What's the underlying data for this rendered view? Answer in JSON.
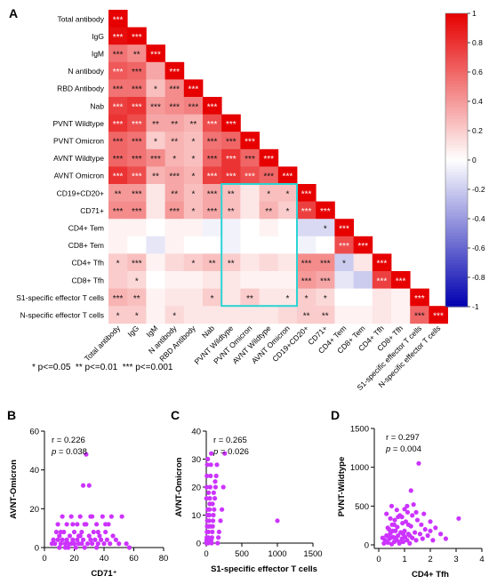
{
  "panel_labels": [
    "A",
    "B",
    "C",
    "D"
  ],
  "footnote": "* p<=0.05  ** p<=0.01  *** p<=0.001",
  "chart_data": [
    {
      "type": "heatmap",
      "panel": "A",
      "variables": [
        "Total antibody",
        "IgG",
        "IgM",
        "N antibody",
        "RBD Antibody",
        "Nab",
        "PVNT Wildtype",
        "PVNT Omicron",
        "AVNT Wildtype",
        "AVNT Omicron",
        "CD19+CD20+",
        "CD71+",
        "CD4+ Tem",
        "CD8+ Tem",
        "CD4+ Tfh",
        "CD8+ Tfh",
        "S1-specific effector T cells",
        "N-specific effector T cells"
      ],
      "x_labels": [
        "Total antibody",
        "IgG",
        "IgM",
        "N antibody",
        "RBD Antibody",
        "Nab",
        "PVNT Wildtype",
        "PVNT Omicron",
        "AVNT Wildtype",
        "AVNT Omicron",
        "CD19+CD20+",
        "CD71+",
        "CD4+ Tem",
        "CD8+ Tem",
        "CD4+ Tfh",
        "CD8+ Tfh",
        "S1-specific effector T cells",
        "N-specific effector T cells"
      ],
      "colorbar": {
        "min": -1,
        "max": 1,
        "ticks": [
          "1",
          "0.8",
          "0.6",
          "0.4",
          "0.2",
          "0",
          "-0.2",
          "-0.4",
          "-0.6",
          "-0.8",
          "-1"
        ]
      },
      "colors": {
        "positive": "#e60000",
        "neutral": "#ffffff",
        "negative": "#0000b0",
        "highlight_box": "#2ad4d4"
      },
      "highlight": {
        "rows": [
          10,
          16
        ],
        "cols": [
          6,
          9
        ]
      },
      "r": [
        [
          1
        ],
        [
          0.95,
          1
        ],
        [
          0.55,
          0.45,
          1
        ],
        [
          0.65,
          0.6,
          0.35,
          1
        ],
        [
          0.55,
          0.55,
          0.25,
          0.45,
          1
        ],
        [
          0.75,
          0.8,
          0.4,
          0.45,
          0.5,
          1
        ],
        [
          0.8,
          0.7,
          0.35,
          0.35,
          0.3,
          0.7,
          1
        ],
        [
          0.6,
          0.55,
          0.2,
          0.3,
          0.25,
          0.55,
          0.6,
          1
        ],
        [
          0.6,
          0.55,
          0.45,
          0.3,
          0.25,
          0.6,
          0.8,
          0.6,
          1
        ],
        [
          0.8,
          0.7,
          0.3,
          0.35,
          0.3,
          0.75,
          0.8,
          0.7,
          0.6,
          1
        ],
        [
          0.4,
          0.4,
          0.1,
          0.35,
          0.25,
          0.35,
          0.25,
          0.1,
          0.25,
          0.25,
          1
        ],
        [
          0.45,
          0.45,
          0.1,
          0.4,
          0.25,
          0.35,
          0.25,
          0.1,
          0.3,
          0.2,
          0.75,
          1
        ],
        [
          0.05,
          0.05,
          0.0,
          0.05,
          0.05,
          -0.05,
          -0.05,
          0.0,
          0.05,
          0.0,
          -0.15,
          -0.15,
          1
        ],
        [
          0.05,
          0.0,
          -0.1,
          0.05,
          0.0,
          0.0,
          -0.05,
          0.0,
          0.0,
          0.0,
          -0.05,
          0.0,
          0.7,
          1
        ],
        [
          0.2,
          0.25,
          0.05,
          0.15,
          0.2,
          0.25,
          0.2,
          0.1,
          0.15,
          0.1,
          0.45,
          0.45,
          -0.2,
          0.1,
          1
        ],
        [
          0.2,
          0.15,
          0.0,
          0.05,
          0.05,
          0.1,
          0.1,
          0.05,
          0.05,
          0.05,
          0.4,
          0.35,
          -0.1,
          -0.2,
          0.75,
          1
        ],
        [
          0.3,
          0.25,
          0.05,
          0.1,
          0.1,
          0.2,
          0.1,
          0.2,
          0.1,
          0.1,
          0.2,
          0.15,
          0.0,
          0.0,
          0.1,
          0.05,
          1
        ],
        [
          0.2,
          0.2,
          0.05,
          0.15,
          0.1,
          0.1,
          0.1,
          0.1,
          0.1,
          0.15,
          0.2,
          0.2,
          0.05,
          0.05,
          0.1,
          0.05,
          0.6,
          1
        ]
      ],
      "significance": [
        [
          "***"
        ],
        [
          "***",
          "***"
        ],
        [
          "***",
          "**",
          "***"
        ],
        [
          "***",
          "***",
          "",
          "***"
        ],
        [
          "***",
          "***",
          "*",
          "***",
          "***"
        ],
        [
          "***",
          "***",
          "***",
          "***",
          "***",
          "***"
        ],
        [
          "***",
          "***",
          "**",
          "**",
          "**",
          "***",
          "***"
        ],
        [
          "***",
          "***",
          "*",
          "**",
          "*",
          "***",
          "***",
          "***"
        ],
        [
          "***",
          "***",
          "***",
          "*",
          "*",
          "***",
          "***",
          "***",
          "***"
        ],
        [
          "***",
          "***",
          "**",
          "***",
          "*",
          "***",
          "***",
          "***",
          "***",
          "***"
        ],
        [
          "**",
          "***",
          "",
          "**",
          "*",
          "***",
          "**",
          "",
          "*",
          "*",
          "***"
        ],
        [
          "***",
          "***",
          "",
          "***",
          "*",
          "***",
          "**",
          "",
          "**",
          "*",
          "***",
          "***"
        ],
        [
          "",
          "",
          "",
          "",
          "",
          "",
          "",
          "",
          "",
          "",
          "",
          "*",
          "***"
        ],
        [
          "",
          "",
          "",
          "",
          "",
          "",
          "",
          "",
          "",
          "",
          "",
          "",
          "***",
          "***"
        ],
        [
          "*",
          "***",
          "",
          "",
          "*",
          "**",
          "**",
          "",
          "",
          "",
          "***",
          "***",
          "*",
          "",
          "***"
        ],
        [
          "",
          "*",
          "",
          "",
          "",
          "",
          "",
          "",
          "",
          "",
          "***",
          "***",
          "",
          "",
          "***",
          "***"
        ],
        [
          "***",
          "**",
          "",
          "",
          "",
          "*",
          "",
          "**",
          "",
          "*",
          "*",
          "*",
          "",
          "",
          "",
          "",
          "***"
        ],
        [
          "*",
          "*",
          "",
          "*",
          "",
          "",
          "",
          "",
          "",
          "",
          "**",
          "**",
          "",
          "",
          "",
          "",
          "***",
          "***"
        ]
      ]
    },
    {
      "type": "scatter",
      "panel": "B",
      "xlabel": "CD71⁺",
      "ylabel": "AVNT-Omicron",
      "xlim": [
        0,
        80
      ],
      "ylim": [
        0,
        60
      ],
      "xticks": [
        "0",
        "20",
        "40",
        "60",
        "80"
      ],
      "yticks": [
        "0",
        "20",
        "40",
        "60"
      ],
      "stats": {
        "r": "r = 0.226",
        "p_prefix": "p",
        "p_value": " = 0.038"
      },
      "color": "#cc33ff",
      "points": [
        [
          5,
          2
        ],
        [
          6,
          4
        ],
        [
          7,
          2
        ],
        [
          8,
          8
        ],
        [
          9,
          4
        ],
        [
          10,
          0
        ],
        [
          10,
          6
        ],
        [
          11,
          2
        ],
        [
          12,
          4
        ],
        [
          12,
          16
        ],
        [
          13,
          8
        ],
        [
          14,
          2
        ],
        [
          15,
          4
        ],
        [
          15,
          12
        ],
        [
          16,
          0
        ],
        [
          16,
          2
        ],
        [
          17,
          6
        ],
        [
          18,
          16
        ],
        [
          18,
          2
        ],
        [
          19,
          4
        ],
        [
          20,
          8
        ],
        [
          20,
          2
        ],
        [
          21,
          0
        ],
        [
          22,
          4
        ],
        [
          22,
          12
        ],
        [
          23,
          2
        ],
        [
          24,
          6
        ],
        [
          24,
          16
        ],
        [
          25,
          8
        ],
        [
          25,
          2
        ],
        [
          26,
          32
        ],
        [
          26,
          4
        ],
        [
          27,
          0
        ],
        [
          28,
          48
        ],
        [
          28,
          12
        ],
        [
          29,
          2
        ],
        [
          30,
          32
        ],
        [
          30,
          6
        ],
        [
          31,
          4
        ],
        [
          32,
          16
        ],
        [
          32,
          2
        ],
        [
          33,
          8
        ],
        [
          34,
          4
        ],
        [
          35,
          0
        ],
        [
          35,
          12
        ],
        [
          36,
          2
        ],
        [
          37,
          6
        ],
        [
          38,
          4
        ],
        [
          39,
          16
        ],
        [
          40,
          2
        ],
        [
          41,
          8
        ],
        [
          42,
          4
        ],
        [
          43,
          12
        ],
        [
          44,
          2
        ],
        [
          45,
          16
        ],
        [
          46,
          6
        ],
        [
          48,
          4
        ],
        [
          50,
          2
        ],
        [
          52,
          16
        ],
        [
          55,
          2
        ],
        [
          57,
          0
        ],
        [
          9,
          12
        ],
        [
          11,
          8
        ],
        [
          14,
          0
        ],
        [
          19,
          12
        ],
        [
          23,
          6
        ],
        [
          27,
          12
        ],
        [
          31,
          16
        ],
        [
          36,
          8
        ],
        [
          41,
          12
        ]
      ]
    },
    {
      "type": "scatter",
      "panel": "C",
      "xlabel": "S1-specific effector T cells",
      "ylabel": "AVNT-Omicron",
      "xlim": [
        0,
        1500
      ],
      "ylim": [
        0,
        40
      ],
      "xticks": [
        "0",
        "500",
        "1000",
        "1500"
      ],
      "yticks": [
        "0",
        "10",
        "20",
        "30",
        "40"
      ],
      "stats": {
        "r": "r = 0.265",
        "p_prefix": "p",
        "p_value": " = 0.026"
      },
      "color": "#cc33ff",
      "points": [
        [
          2,
          0
        ],
        [
          5,
          1
        ],
        [
          8,
          2
        ],
        [
          10,
          4
        ],
        [
          12,
          6
        ],
        [
          15,
          8
        ],
        [
          18,
          10
        ],
        [
          20,
          12
        ],
        [
          25,
          0
        ],
        [
          28,
          2
        ],
        [
          30,
          4
        ],
        [
          35,
          6
        ],
        [
          40,
          8
        ],
        [
          42,
          10
        ],
        [
          45,
          12
        ],
        [
          50,
          16
        ],
        [
          55,
          20
        ],
        [
          60,
          24
        ],
        [
          65,
          28
        ],
        [
          70,
          32
        ],
        [
          75,
          0
        ],
        [
          80,
          2
        ],
        [
          85,
          4
        ],
        [
          90,
          6
        ],
        [
          95,
          8
        ],
        [
          100,
          10
        ],
        [
          110,
          12
        ],
        [
          120,
          16
        ],
        [
          130,
          20
        ],
        [
          140,
          24
        ],
        [
          150,
          28
        ],
        [
          160,
          0
        ],
        [
          170,
          2
        ],
        [
          180,
          4
        ],
        [
          200,
          8
        ],
        [
          220,
          12
        ],
        [
          240,
          20
        ],
        [
          260,
          32
        ],
        [
          1000,
          8
        ],
        [
          3,
          16
        ],
        [
          6,
          20
        ],
        [
          9,
          24
        ],
        [
          14,
          28
        ],
        [
          22,
          30
        ],
        [
          33,
          18
        ],
        [
          48,
          14
        ],
        [
          58,
          6
        ],
        [
          68,
          1
        ],
        [
          88,
          14
        ],
        [
          105,
          18
        ],
        [
          125,
          22
        ]
      ]
    },
    {
      "type": "scatter",
      "panel": "D",
      "xlabel": "CD4+ Tfh",
      "ylabel": "PVNT-Wildtype",
      "xlim": [
        0,
        4
      ],
      "ylim": [
        0,
        1500
      ],
      "xticks": [
        "0",
        "1",
        "2",
        "3",
        "4"
      ],
      "yticks": [
        "0",
        "500",
        "1000",
        "1500"
      ],
      "stats": {
        "r": "r = 0.297",
        "p_prefix": "p",
        "p_value": " = 0.004"
      },
      "color": "#cc33ff",
      "points": [
        [
          0.2,
          20
        ],
        [
          0.25,
          60
        ],
        [
          0.3,
          120
        ],
        [
          0.35,
          30
        ],
        [
          0.4,
          200
        ],
        [
          0.42,
          80
        ],
        [
          0.45,
          150
        ],
        [
          0.5,
          10
        ],
        [
          0.52,
          260
        ],
        [
          0.55,
          100
        ],
        [
          0.6,
          40
        ],
        [
          0.62,
          320
        ],
        [
          0.65,
          180
        ],
        [
          0.7,
          60
        ],
        [
          0.72,
          230
        ],
        [
          0.75,
          120
        ],
        [
          0.8,
          20
        ],
        [
          0.82,
          380
        ],
        [
          0.85,
          160
        ],
        [
          0.9,
          80
        ],
        [
          0.92,
          280
        ],
        [
          0.95,
          40
        ],
        [
          1.0,
          180
        ],
        [
          1.02,
          100
        ],
        [
          1.05,
          300
        ],
        [
          1.1,
          60
        ],
        [
          1.12,
          420
        ],
        [
          1.15,
          140
        ],
        [
          1.2,
          20
        ],
        [
          1.25,
          240
        ],
        [
          1.3,
          90
        ],
        [
          1.35,
          520
        ],
        [
          1.4,
          160
        ],
        [
          1.45,
          60
        ],
        [
          1.5,
          320
        ],
        [
          1.55,
          1050
        ],
        [
          1.6,
          140
        ],
        [
          1.65,
          260
        ],
        [
          1.7,
          80
        ],
        [
          1.8,
          200
        ],
        [
          1.9,
          120
        ],
        [
          2.0,
          300
        ],
        [
          2.1,
          60
        ],
        [
          2.2,
          220
        ],
        [
          2.4,
          140
        ],
        [
          2.6,
          80
        ],
        [
          3.1,
          340
        ],
        [
          0.3,
          400
        ],
        [
          0.5,
          500
        ],
        [
          0.7,
          450
        ],
        [
          0.9,
          360
        ],
        [
          1.1,
          500
        ],
        [
          1.3,
          380
        ],
        [
          0.6,
          260
        ],
        [
          0.45,
          340
        ],
        [
          0.85,
          40
        ],
        [
          1.0,
          460
        ],
        [
          1.25,
          700
        ],
        [
          1.45,
          420
        ],
        [
          0.55,
          180
        ],
        [
          0.35,
          220
        ],
        [
          0.15,
          90
        ],
        [
          0.65,
          90
        ],
        [
          0.75,
          360
        ],
        [
          0.95,
          140
        ],
        [
          1.15,
          260
        ],
        [
          1.75,
          400
        ],
        [
          2.0,
          180
        ],
        [
          1.2,
          120
        ],
        [
          0.4,
          100
        ]
      ]
    }
  ]
}
